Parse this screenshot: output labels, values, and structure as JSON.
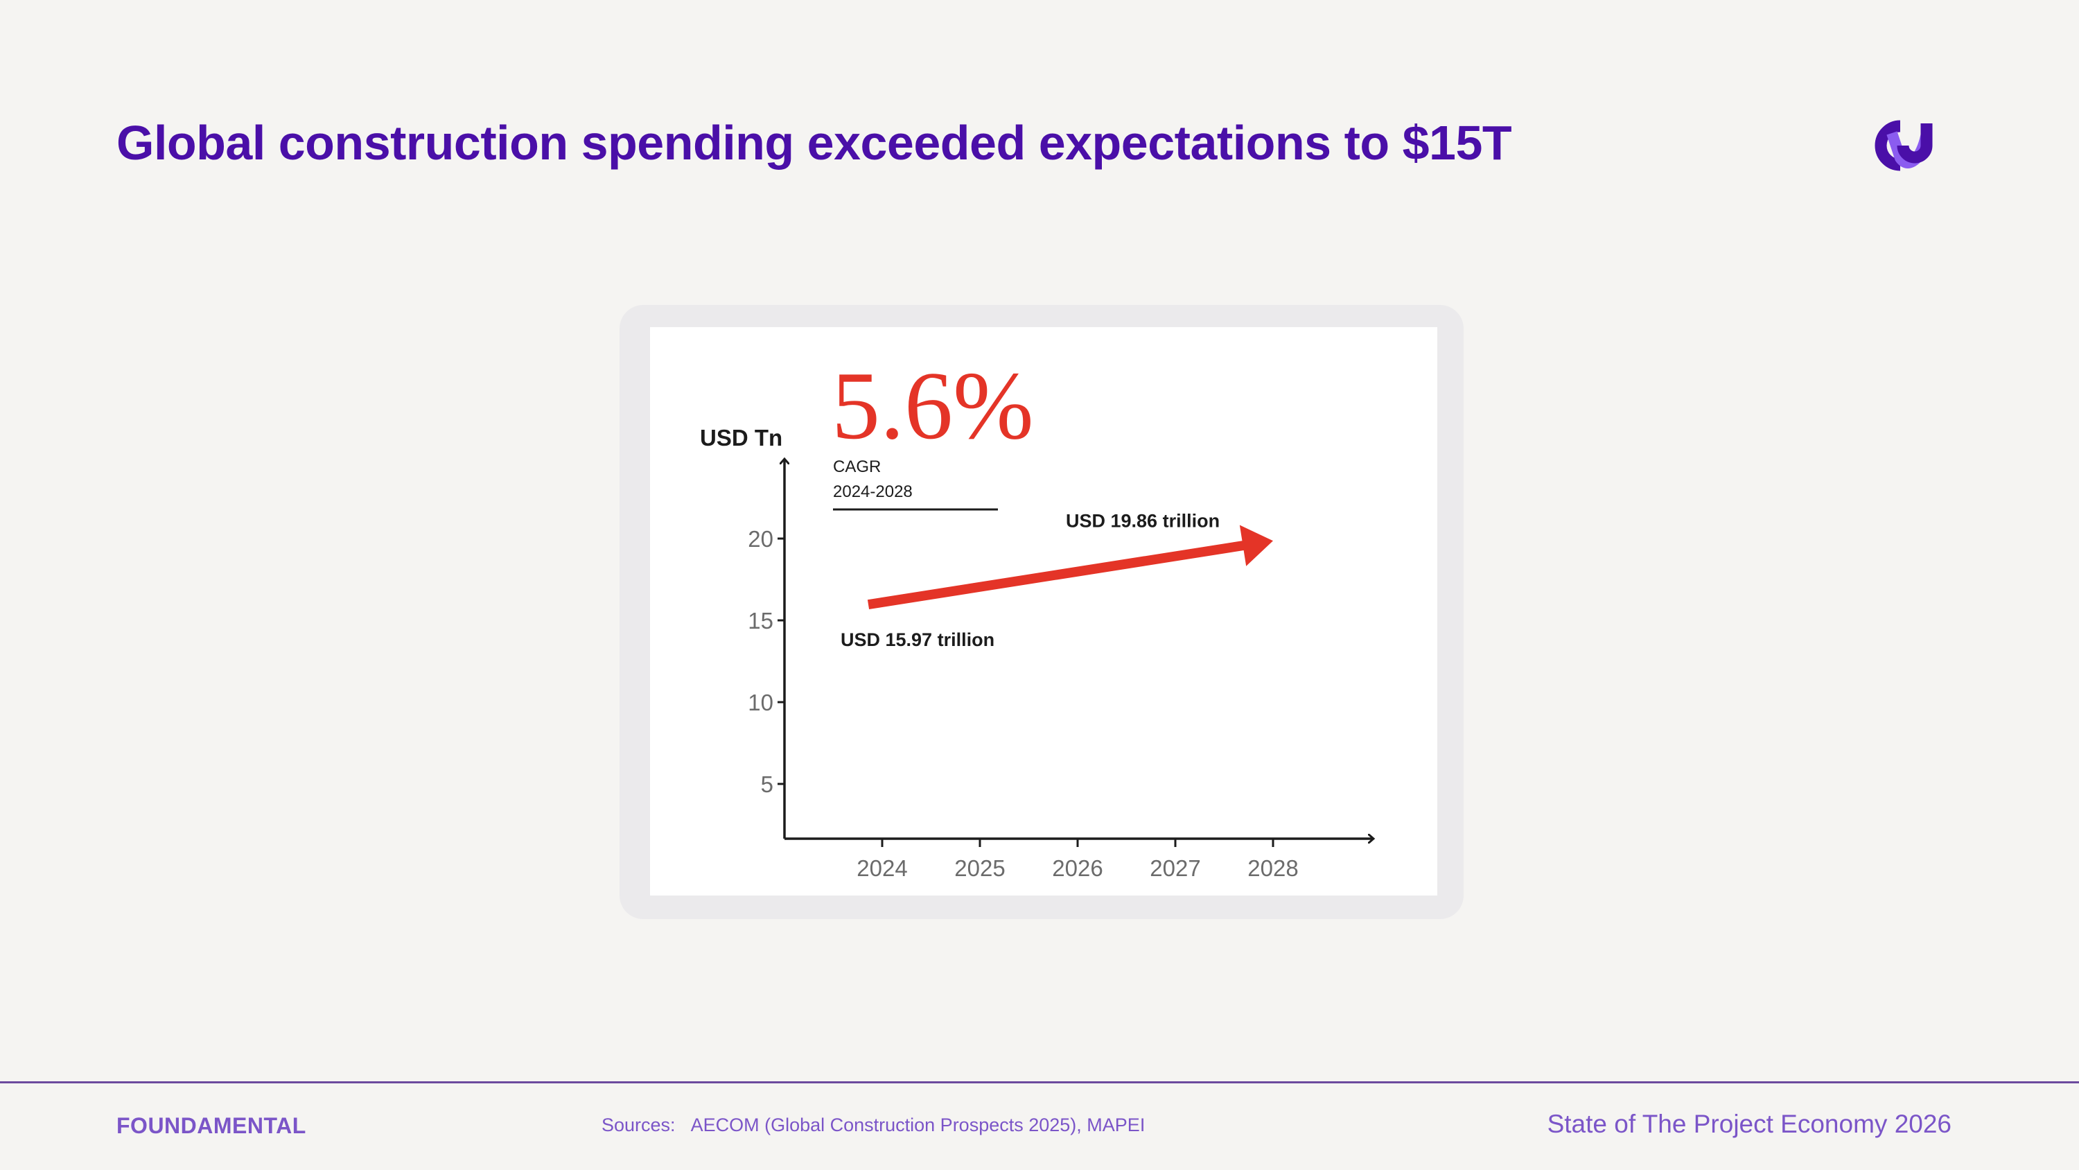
{
  "page": {
    "title": "Global construction spending exceeded expectations to $15T"
  },
  "footer": {
    "logo_text": "FOUNDAMENTAL",
    "sources_label": "Sources:",
    "sources_text": "AECOM (Global Construction Prospects 2025), MAPEI",
    "report_name": "State of The Project Economy 2026"
  },
  "colors": {
    "title": "#4a0fa8",
    "accent": "#e43427",
    "footer_text": "#7b55c8"
  },
  "icons": {
    "brand_mark": "brand-logo-icon"
  },
  "chart_data": {
    "type": "line",
    "title": "",
    "ylabel": "USD Tn",
    "xlabel": "",
    "x_ticks": [
      "2024",
      "2025",
      "2026",
      "2027",
      "2028"
    ],
    "y_ticks": [
      5,
      10,
      15,
      20
    ],
    "ylim": [
      0,
      23
    ],
    "grid": false,
    "series": [
      {
        "points": [
          {
            "x": "2024",
            "y": 15.97,
            "label": "USD 15.97 trillion"
          },
          {
            "x": "2028",
            "y": 19.86,
            "label": "USD 19.86  trillion"
          }
        ]
      }
    ],
    "annotation": {
      "value": "5.6%",
      "caption_line1": "CAGR",
      "caption_line2": "2024-2028"
    }
  }
}
